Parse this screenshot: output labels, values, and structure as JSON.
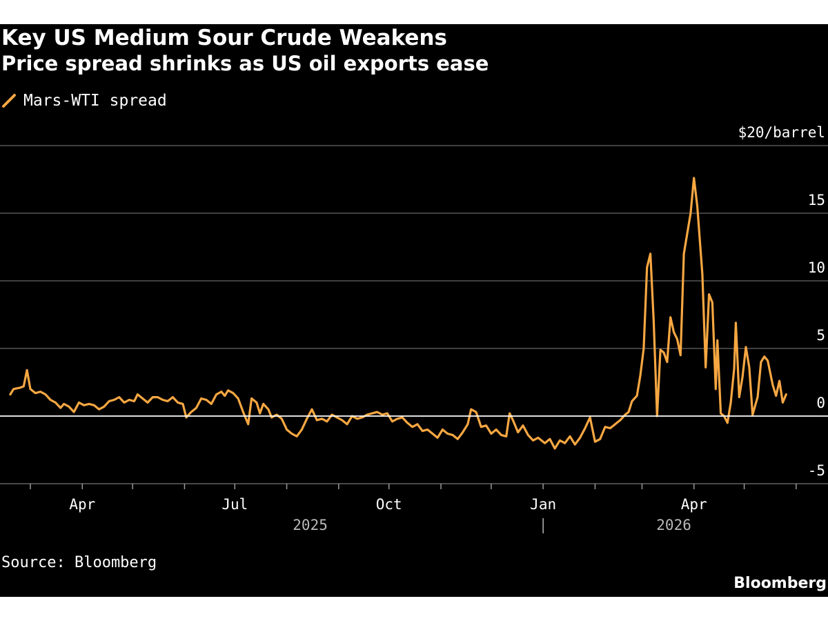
{
  "title": "Key US Medium Sour Crude Weakens",
  "subtitle": "Price spread shrinks as US oil exports ease",
  "source": "Source: Bloomberg",
  "brand": "Bloomberg",
  "chart_data": {
    "type": "line",
    "y_unit_label": "$20/barrel",
    "ylim": [
      -5,
      20
    ],
    "y_ticks": [
      {
        "value": 15,
        "label": "15"
      },
      {
        "value": 10,
        "label": "10"
      },
      {
        "value": 5,
        "label": "5"
      },
      {
        "value": 0,
        "label": "0"
      },
      {
        "value": -5,
        "label": "-5"
      }
    ],
    "zero_line": 0,
    "grid": true,
    "legend_position": "top-left",
    "xlim": [
      "2025-02-15",
      "2026-06-20"
    ],
    "x_ticks": [
      {
        "date": "2025-04-01",
        "label": "Apr"
      },
      {
        "date": "2025-07-01",
        "label": "Jul"
      },
      {
        "date": "2025-10-01",
        "label": "Oct"
      },
      {
        "date": "2026-01-01",
        "label": "Jan"
      },
      {
        "date": "2026-04-01",
        "label": "Apr"
      }
    ],
    "month_ticks": [
      "2025-03-01",
      "2025-04-01",
      "2025-05-01",
      "2025-06-01",
      "2025-07-01",
      "2025-08-01",
      "2025-09-01",
      "2025-10-01",
      "2025-11-01",
      "2025-12-01",
      "2026-01-01",
      "2026-02-01",
      "2026-03-01",
      "2026-04-01",
      "2026-05-01",
      "2026-06-01"
    ],
    "year_labels": [
      {
        "label": "2025",
        "date": "2025-08-15"
      },
      {
        "label": "2026",
        "date": "2026-03-20"
      }
    ],
    "year_divider": "2026-01-01",
    "colors": {
      "line": "#f7a742",
      "grid": "#555555",
      "zero": "#ffffff"
    },
    "series": [
      {
        "name": "Mars-WTI spread",
        "points": [
          [
            "2025-02-17",
            1.6
          ],
          [
            "2025-02-19",
            2.0
          ],
          [
            "2025-02-23",
            2.1
          ],
          [
            "2025-02-25",
            2.2
          ],
          [
            "2025-02-27",
            3.4
          ],
          [
            "2025-03-01",
            2.0
          ],
          [
            "2025-03-04",
            1.7
          ],
          [
            "2025-03-07",
            1.8
          ],
          [
            "2025-03-10",
            1.6
          ],
          [
            "2025-03-13",
            1.2
          ],
          [
            "2025-03-16",
            1.0
          ],
          [
            "2025-03-19",
            0.6
          ],
          [
            "2025-03-21",
            0.9
          ],
          [
            "2025-03-24",
            0.7
          ],
          [
            "2025-03-27",
            0.3
          ],
          [
            "2025-03-30",
            1.0
          ],
          [
            "2025-04-02",
            0.8
          ],
          [
            "2025-04-05",
            0.9
          ],
          [
            "2025-04-08",
            0.8
          ],
          [
            "2025-04-11",
            0.5
          ],
          [
            "2025-04-14",
            0.7
          ],
          [
            "2025-04-17",
            1.1
          ],
          [
            "2025-04-20",
            1.2
          ],
          [
            "2025-04-23",
            1.4
          ],
          [
            "2025-04-26",
            1.0
          ],
          [
            "2025-04-29",
            1.2
          ],
          [
            "2025-05-02",
            1.1
          ],
          [
            "2025-05-04",
            1.6
          ],
          [
            "2025-05-07",
            1.3
          ],
          [
            "2025-05-10",
            1.0
          ],
          [
            "2025-05-13",
            1.4
          ],
          [
            "2025-05-16",
            1.4
          ],
          [
            "2025-05-19",
            1.2
          ],
          [
            "2025-05-22",
            1.1
          ],
          [
            "2025-05-25",
            1.4
          ],
          [
            "2025-05-28",
            1.0
          ],
          [
            "2025-05-31",
            0.9
          ],
          [
            "2025-06-02",
            -0.1
          ],
          [
            "2025-06-05",
            0.3
          ],
          [
            "2025-06-08",
            0.6
          ],
          [
            "2025-06-11",
            1.3
          ],
          [
            "2025-06-14",
            1.2
          ],
          [
            "2025-06-17",
            0.9
          ],
          [
            "2025-06-20",
            1.6
          ],
          [
            "2025-06-23",
            1.8
          ],
          [
            "2025-06-25",
            1.5
          ],
          [
            "2025-06-27",
            1.9
          ],
          [
            "2025-06-30",
            1.7
          ],
          [
            "2025-07-03",
            1.3
          ],
          [
            "2025-07-06",
            0.3
          ],
          [
            "2025-07-09",
            -0.6
          ],
          [
            "2025-07-11",
            1.3
          ],
          [
            "2025-07-14",
            1.0
          ],
          [
            "2025-07-16",
            0.2
          ],
          [
            "2025-07-18",
            0.9
          ],
          [
            "2025-07-21",
            0.5
          ],
          [
            "2025-07-23",
            -0.1
          ],
          [
            "2025-07-26",
            0.1
          ],
          [
            "2025-07-29",
            -0.2
          ],
          [
            "2025-08-01",
            -1.0
          ],
          [
            "2025-08-04",
            -1.3
          ],
          [
            "2025-08-07",
            -1.5
          ],
          [
            "2025-08-10",
            -1.0
          ],
          [
            "2025-08-13",
            -0.2
          ],
          [
            "2025-08-16",
            0.5
          ],
          [
            "2025-08-19",
            -0.3
          ],
          [
            "2025-08-22",
            -0.2
          ],
          [
            "2025-08-25",
            -0.4
          ],
          [
            "2025-08-28",
            0.1
          ],
          [
            "2025-08-31",
            -0.1
          ],
          [
            "2025-09-03",
            -0.3
          ],
          [
            "2025-09-06",
            -0.6
          ],
          [
            "2025-09-09",
            0.0
          ],
          [
            "2025-09-12",
            -0.2
          ],
          [
            "2025-09-15",
            -0.1
          ],
          [
            "2025-09-18",
            0.1
          ],
          [
            "2025-09-21",
            0.2
          ],
          [
            "2025-09-24",
            0.3
          ],
          [
            "2025-09-27",
            0.1
          ],
          [
            "2025-09-30",
            0.2
          ],
          [
            "2025-10-03",
            -0.4
          ],
          [
            "2025-10-06",
            -0.2
          ],
          [
            "2025-10-09",
            -0.1
          ],
          [
            "2025-10-12",
            -0.5
          ],
          [
            "2025-10-15",
            -0.8
          ],
          [
            "2025-10-18",
            -0.6
          ],
          [
            "2025-10-21",
            -1.1
          ],
          [
            "2025-10-24",
            -1.0
          ],
          [
            "2025-10-27",
            -1.3
          ],
          [
            "2025-10-30",
            -1.6
          ],
          [
            "2025-11-02",
            -1.0
          ],
          [
            "2025-11-05",
            -1.3
          ],
          [
            "2025-11-08",
            -1.4
          ],
          [
            "2025-11-11",
            -1.7
          ],
          [
            "2025-11-14",
            -1.2
          ],
          [
            "2025-11-17",
            -0.6
          ],
          [
            "2025-11-19",
            0.5
          ],
          [
            "2025-11-22",
            0.3
          ],
          [
            "2025-11-25",
            -0.8
          ],
          [
            "2025-11-28",
            -0.7
          ],
          [
            "2025-12-01",
            -1.3
          ],
          [
            "2025-12-04",
            -1.0
          ],
          [
            "2025-12-07",
            -1.4
          ],
          [
            "2025-12-10",
            -1.5
          ],
          [
            "2025-12-12",
            0.2
          ],
          [
            "2025-12-14",
            -0.3
          ],
          [
            "2025-12-17",
            -1.2
          ],
          [
            "2025-12-20",
            -0.7
          ],
          [
            "2025-12-23",
            -1.4
          ],
          [
            "2025-12-26",
            -1.8
          ],
          [
            "2025-12-29",
            -1.6
          ],
          [
            "2026-01-02",
            -2.0
          ],
          [
            "2026-01-05",
            -1.7
          ],
          [
            "2026-01-08",
            -2.4
          ],
          [
            "2026-01-11",
            -1.8
          ],
          [
            "2026-01-14",
            -2.0
          ],
          [
            "2026-01-17",
            -1.5
          ],
          [
            "2026-01-20",
            -2.1
          ],
          [
            "2026-01-23",
            -1.6
          ],
          [
            "2026-01-26",
            -0.9
          ],
          [
            "2026-01-29",
            -0.1
          ],
          [
            "2026-02-01",
            -1.9
          ],
          [
            "2026-02-04",
            -1.7
          ],
          [
            "2026-02-07",
            -0.8
          ],
          [
            "2026-02-10",
            -0.9
          ],
          [
            "2026-02-13",
            -0.6
          ],
          [
            "2026-02-16",
            -0.3
          ],
          [
            "2026-02-19",
            0.1
          ],
          [
            "2026-02-21",
            0.3
          ],
          [
            "2026-02-23",
            1.1
          ],
          [
            "2026-02-26",
            1.5
          ],
          [
            "2026-02-28",
            3.0
          ],
          [
            "2026-03-02",
            5.0
          ],
          [
            "2026-03-04",
            11.0
          ],
          [
            "2026-03-06",
            12.0
          ],
          [
            "2026-03-08",
            7.0
          ],
          [
            "2026-03-10",
            0.0
          ],
          [
            "2026-03-12",
            4.9
          ],
          [
            "2026-03-14",
            4.7
          ],
          [
            "2026-03-16",
            4.0
          ],
          [
            "2026-03-18",
            7.3
          ],
          [
            "2026-03-20",
            6.2
          ],
          [
            "2026-03-22",
            5.7
          ],
          [
            "2026-03-24",
            4.5
          ],
          [
            "2026-03-26",
            12.0
          ],
          [
            "2026-03-30",
            15.0
          ],
          [
            "2026-04-01",
            17.6
          ],
          [
            "2026-04-03",
            15.5
          ],
          [
            "2026-04-06",
            10.5
          ],
          [
            "2026-04-08",
            3.6
          ],
          [
            "2026-04-10",
            9.0
          ],
          [
            "2026-04-12",
            8.4
          ],
          [
            "2026-04-14",
            2.0
          ],
          [
            "2026-04-15",
            5.6
          ],
          [
            "2026-04-17",
            0.2
          ],
          [
            "2026-04-19",
            0.0
          ],
          [
            "2026-04-21",
            -0.5
          ],
          [
            "2026-04-23",
            1.0
          ],
          [
            "2026-04-25",
            3.5
          ],
          [
            "2026-04-26",
            6.9
          ],
          [
            "2026-04-28",
            1.4
          ],
          [
            "2026-04-30",
            2.9
          ],
          [
            "2026-05-02",
            5.1
          ],
          [
            "2026-05-04",
            3.6
          ],
          [
            "2026-05-06",
            0.1
          ],
          [
            "2026-05-09",
            1.4
          ],
          [
            "2026-05-11",
            4.0
          ],
          [
            "2026-05-13",
            4.4
          ],
          [
            "2026-05-15",
            4.1
          ],
          [
            "2026-05-18",
            2.3
          ],
          [
            "2026-05-20",
            1.5
          ],
          [
            "2026-05-22",
            2.6
          ],
          [
            "2026-05-24",
            1.0
          ],
          [
            "2026-05-26",
            1.6
          ]
        ]
      }
    ]
  }
}
